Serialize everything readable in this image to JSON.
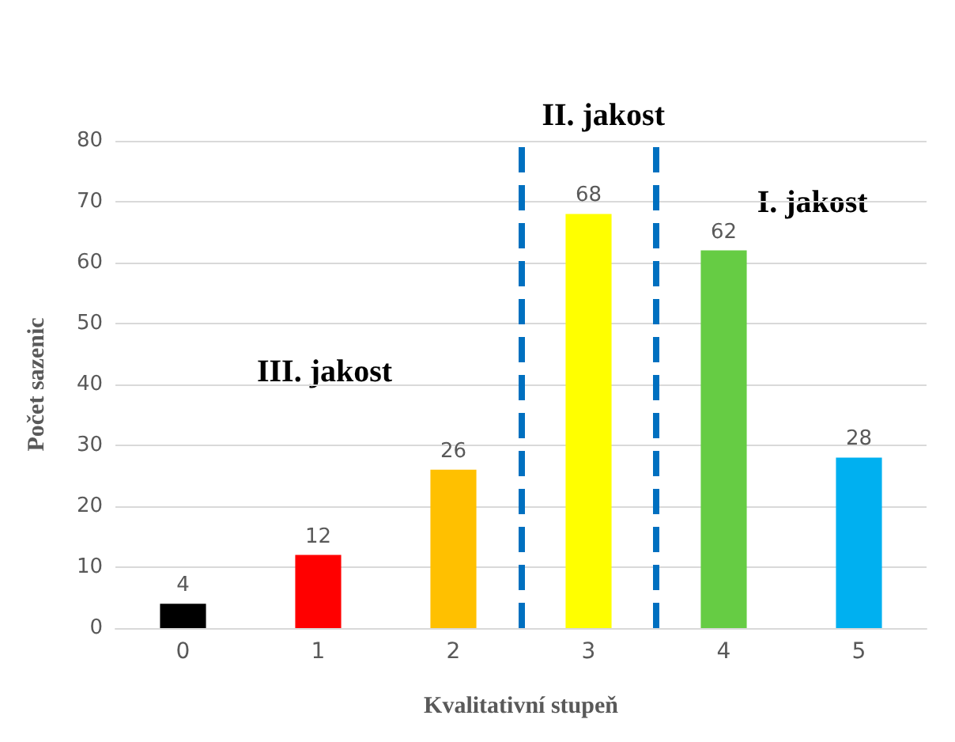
{
  "chart_data": {
    "type": "bar",
    "xlabel": "Kvalitativní stupeň",
    "ylabel": "Počet sazenic",
    "categories": [
      "0",
      "1",
      "2",
      "3",
      "4",
      "5"
    ],
    "values": [
      4,
      12,
      26,
      68,
      62,
      28
    ],
    "colors": [
      "#000000",
      "#ff0000",
      "#ffc000",
      "#ffff00",
      "#66cc44",
      "#00b0f0"
    ],
    "ylim": [
      0,
      80
    ],
    "yticks": [
      0,
      10,
      20,
      30,
      40,
      50,
      60,
      70,
      80
    ],
    "grid": "y",
    "data_labels": true,
    "annotations": [
      "III. jakost",
      "II. jakost",
      "I. jakost"
    ]
  }
}
